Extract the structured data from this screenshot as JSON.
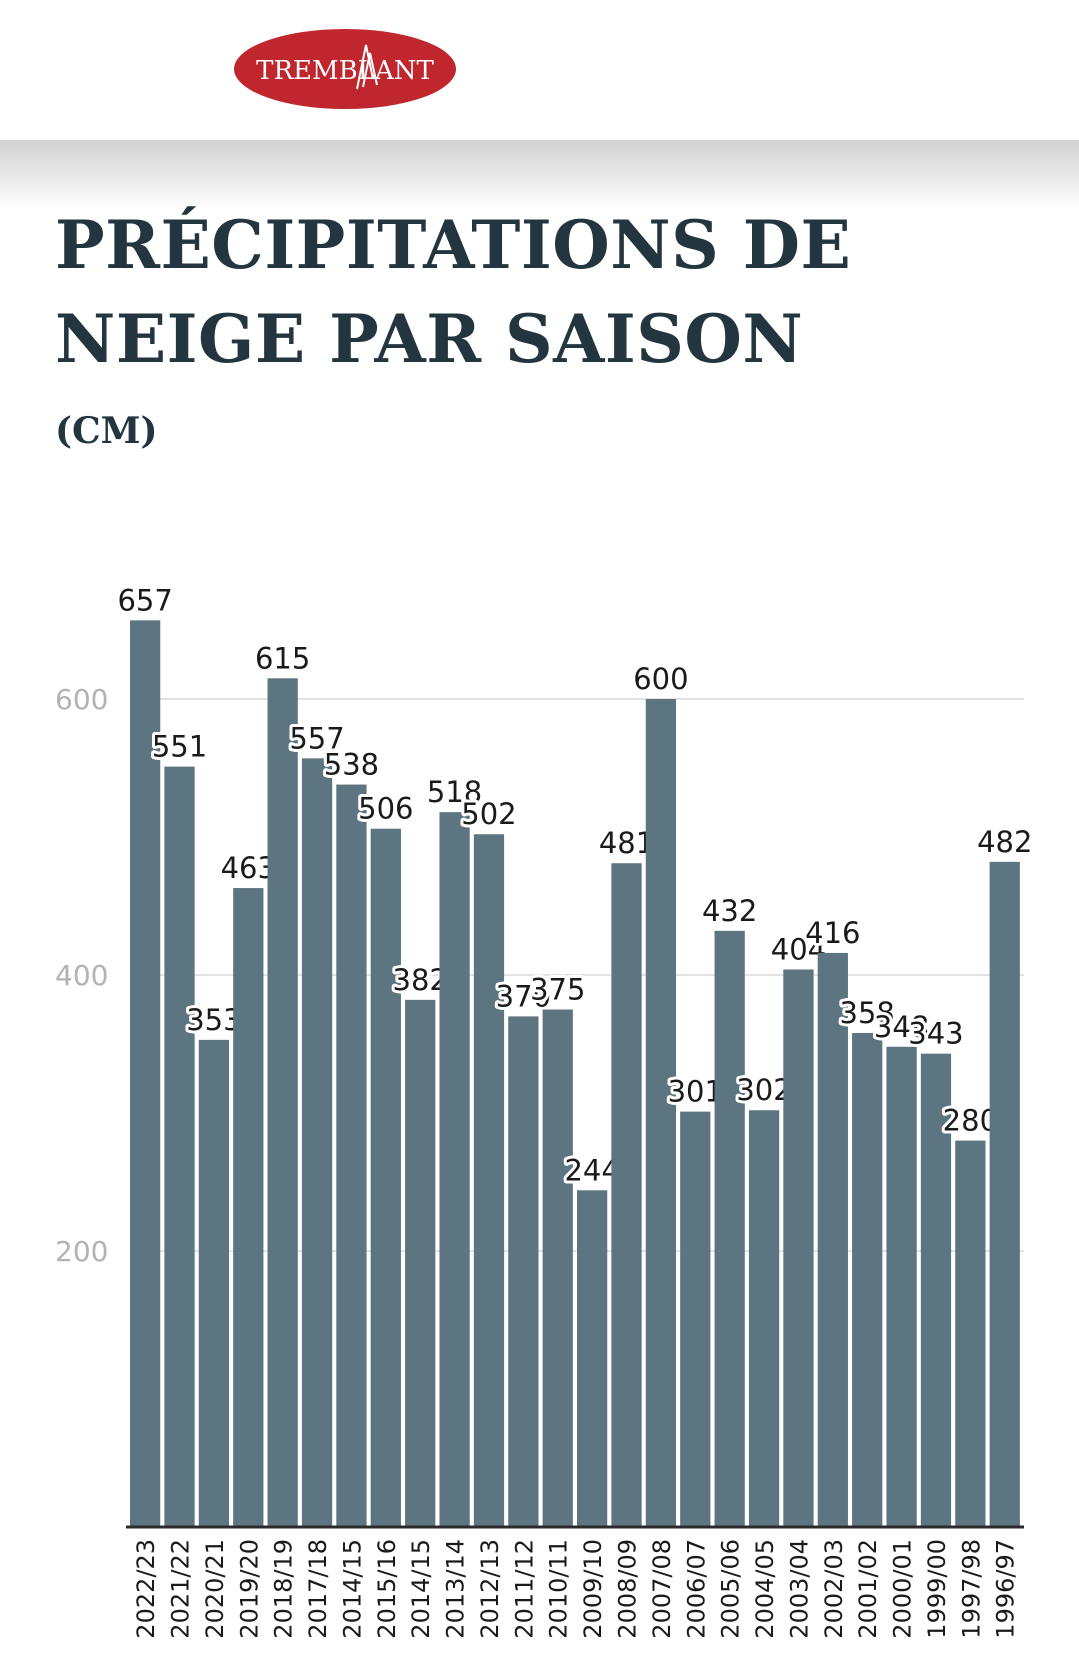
{
  "header": {
    "logo_text": "TREMBLANT",
    "logo_color": "#c0262d"
  },
  "title": "PRÉCIPITATIONS DE NEIGE PAR SAISON",
  "subtitle": "(CM)",
  "colors": {
    "bar": "#5c7580",
    "title": "#23363f",
    "grid": "#e2e2e2",
    "tick": "#b3b3b3",
    "label": "#1a1a1a"
  },
  "chart_data": {
    "type": "bar",
    "title": "PRÉCIPITATIONS DE NEIGE PAR SAISON",
    "subtitle": "(CM)",
    "xlabel": "",
    "ylabel": "",
    "categories": [
      "2022/23",
      "2021/22",
      "2020/21",
      "2019/20",
      "2018/19",
      "2017/18",
      "2014/15",
      "2015/16",
      "2014/15",
      "2013/14",
      "2012/13",
      "2011/12",
      "2010/11",
      "2009/10",
      "2008/09",
      "2007/08",
      "2006/07",
      "2005/06",
      "2004/05",
      "2003/04",
      "2002/03",
      "2001/02",
      "2000/01",
      "1999/00",
      "1997/98",
      "1996/97"
    ],
    "values": [
      657,
      551,
      353,
      463,
      615,
      557,
      538,
      506,
      382,
      518,
      502,
      370,
      375,
      244,
      481,
      600,
      301,
      432,
      302,
      404,
      416,
      358,
      348,
      343,
      280,
      482
    ],
    "yticks": [
      200,
      400,
      600
    ],
    "ylim": [
      0,
      700
    ],
    "grid": true,
    "legend": "none"
  }
}
